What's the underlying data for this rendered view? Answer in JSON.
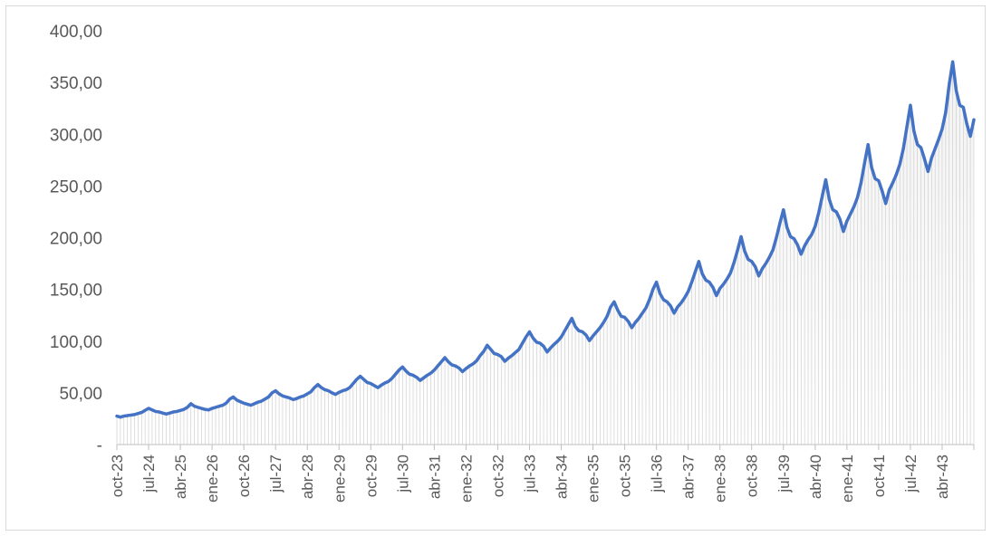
{
  "chart_data": {
    "type": "area",
    "title": "",
    "xlabel": "",
    "ylabel": "",
    "ylim": [
      0,
      400
    ],
    "y_ticks": [
      {
        "value": 0,
        "label": "-"
      },
      {
        "value": 50,
        "label": "50,00"
      },
      {
        "value": 100,
        "label": "100,00"
      },
      {
        "value": 150,
        "label": "150,00"
      },
      {
        "value": 200,
        "label": "200,00"
      },
      {
        "value": 250,
        "label": "250,00"
      },
      {
        "value": 300,
        "label": "300,00"
      },
      {
        "value": 350,
        "label": "350,00"
      },
      {
        "value": 400,
        "label": "400,00"
      }
    ],
    "x_tick_labels": [
      "oct-23",
      "jul-24",
      "abr-25",
      "ene-26",
      "oct-26",
      "jul-27",
      "abr-28",
      "ene-29",
      "oct-29",
      "jul-30",
      "abr-31",
      "ene-32",
      "oct-32",
      "jul-33",
      "abr-34",
      "ene-35",
      "oct-35",
      "jul-36",
      "abr-37",
      "ene-38",
      "oct-38",
      "jul-39",
      "abr-40",
      "ene-41",
      "oct-41",
      "jul-42",
      "abr-43"
    ],
    "grid": false,
    "legend": "none",
    "colors": {
      "line": "#4472c4",
      "area_top": "#f2f2f2",
      "area_bottom": "#ffffff",
      "hatch": "#c9c9c9",
      "axis": "#bfbfbf"
    },
    "first_month": "oct-23",
    "last_month": "dic-43",
    "series": [
      {
        "values": [
          27.5,
          26.5,
          27.5,
          28,
          28.5,
          29,
          30,
          31,
          33,
          35,
          33.5,
          32,
          31.5,
          30.5,
          29.5,
          30.5,
          31.5,
          32,
          33,
          34,
          36,
          39.5,
          37,
          36,
          35,
          34,
          33.5,
          35,
          36,
          37,
          38,
          40,
          44,
          46,
          43,
          41.5,
          40,
          39,
          38,
          39.5,
          41,
          42,
          44,
          46,
          50,
          52,
          49,
          47,
          46,
          45,
          43.5,
          44.5,
          46,
          47,
          49,
          51,
          55,
          58,
          55,
          53,
          52,
          50,
          48.5,
          50.5,
          52,
          53,
          55,
          59,
          63,
          66,
          63,
          60,
          59,
          57,
          55,
          57.5,
          59.5,
          61,
          64,
          68,
          72,
          75,
          71,
          68,
          67,
          65,
          62,
          64.5,
          67,
          69,
          72,
          76,
          80,
          84,
          80,
          77,
          76,
          74,
          70.5,
          73.5,
          76,
          78,
          81,
          86,
          90,
          96,
          92,
          88,
          87,
          85,
          80.5,
          83.5,
          86,
          89,
          92,
          98,
          104,
          109,
          103,
          99,
          98,
          95,
          89.5,
          93.5,
          97,
          100,
          104,
          110,
          116,
          122,
          114,
          110,
          109,
          106,
          100.5,
          105,
          109,
          113,
          118,
          124,
          133,
          138,
          130,
          124,
          123,
          119,
          113,
          118,
          122,
          127,
          132,
          140,
          150,
          157,
          146,
          140,
          138,
          134,
          127,
          133,
          137,
          142,
          148,
          157,
          167,
          177,
          165,
          159,
          157,
          152,
          144,
          151,
          155,
          160,
          166,
          176,
          188,
          201,
          187,
          179,
          177,
          172,
          163,
          170,
          175,
          181,
          188,
          200,
          214,
          227,
          210,
          201,
          199,
          193,
          184,
          192,
          198,
          203,
          211,
          224,
          240,
          256,
          237,
          227,
          225,
          218,
          206,
          216,
          223,
          230,
          239,
          253,
          272,
          290,
          268,
          257,
          255,
          245,
          233,
          246,
          253,
          261,
          271,
          286,
          307,
          328,
          303,
          290,
          287,
          276,
          264,
          277,
          286,
          295,
          305,
          321,
          348,
          370,
          342,
          328,
          326,
          310,
          298,
          314
        ]
      }
    ]
  }
}
